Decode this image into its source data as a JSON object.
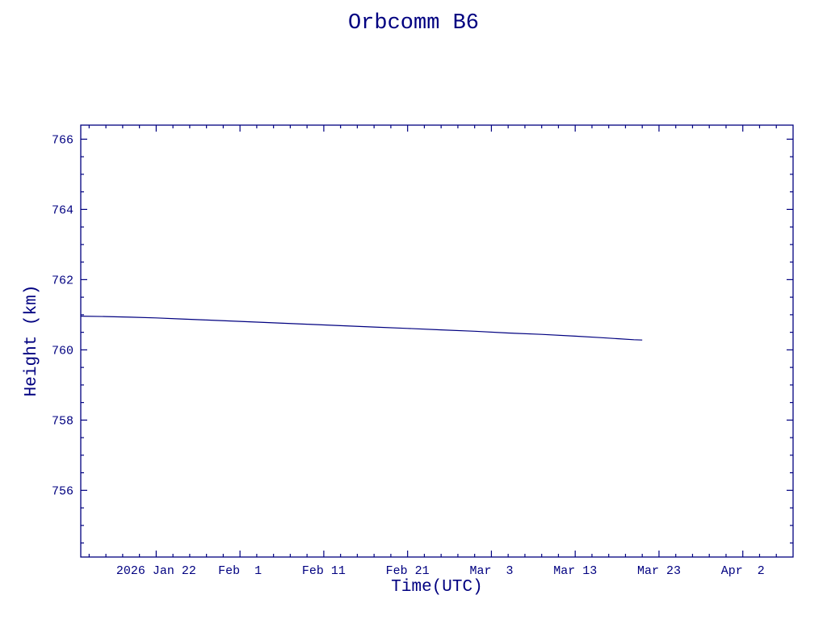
{
  "colors": {
    "axis": "#000080",
    "text": "#000080",
    "line": "#000080",
    "background": "#ffffff"
  },
  "chart_data": {
    "type": "line",
    "title": "Orbcomm B6",
    "xlabel": "Time(UTC)",
    "ylabel": "Height (km)",
    "legend": "none",
    "grid": "off",
    "frame": "box with inward ticks on all four sides",
    "x_unit": "days from left edge of plot",
    "x_range_days": [
      0,
      85
    ],
    "ylim": [
      754.1,
      766.4
    ],
    "x_ticks": [
      {
        "day": 9,
        "label": "2026 Jan 22"
      },
      {
        "day": 19,
        "label": "Feb  1"
      },
      {
        "day": 29,
        "label": "Feb 11"
      },
      {
        "day": 39,
        "label": "Feb 21"
      },
      {
        "day": 49,
        "label": "Mar  3"
      },
      {
        "day": 59,
        "label": "Mar 13"
      },
      {
        "day": 69,
        "label": "Mar 23"
      },
      {
        "day": 79,
        "label": "Apr  2"
      }
    ],
    "y_ticks": [
      756,
      758,
      760,
      762,
      764,
      766
    ],
    "x_minor_step_days": 2,
    "y_minor_step": 0.5,
    "series": [
      {
        "name": "height-km",
        "points": [
          [
            0,
            760.96
          ],
          [
            3,
            760.95
          ],
          [
            6,
            760.93
          ],
          [
            9,
            760.91
          ],
          [
            12,
            760.88
          ],
          [
            15,
            760.85
          ],
          [
            19,
            760.81
          ],
          [
            23,
            760.77
          ],
          [
            27,
            760.73
          ],
          [
            31,
            760.69
          ],
          [
            35,
            760.65
          ],
          [
            39,
            760.61
          ],
          [
            43,
            760.57
          ],
          [
            47,
            760.53
          ],
          [
            51,
            760.48
          ],
          [
            55,
            760.44
          ],
          [
            59,
            760.39
          ],
          [
            62,
            760.35
          ],
          [
            64,
            760.32
          ],
          [
            66,
            760.29
          ],
          [
            67,
            760.28
          ]
        ]
      }
    ]
  }
}
